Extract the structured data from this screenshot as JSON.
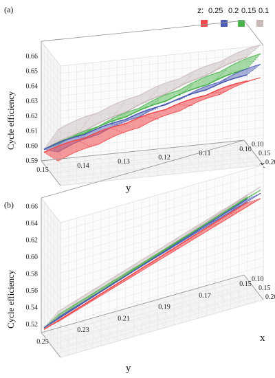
{
  "legend": {
    "title": "z:",
    "items": [
      {
        "label": "0.25",
        "color": "#f04a4e"
      },
      {
        "label": "0.2",
        "color": "#4b5ab2"
      },
      {
        "label": "0.15",
        "color": "#48b34a"
      },
      {
        "label": "0.1",
        "color": "#c9b9b9"
      }
    ]
  },
  "chart_data": [
    {
      "type": "surface3d",
      "panel_label": "(a)",
      "zlabel": "Cycle efficiency",
      "ylabel": "y",
      "xlabel": "x",
      "y_ticks": [
        "0.15",
        "0.14",
        "0.13",
        "0.12",
        "0.11",
        "0.10"
      ],
      "y_range": [
        0.15,
        0.1
      ],
      "x_ticks": [
        "0.10",
        "0.15",
        "0.20"
      ],
      "x_range": [
        0.08,
        0.22
      ],
      "z_ticks": [
        "0.59",
        "0.60",
        "0.61",
        "0.62",
        "0.63",
        "0.64",
        "0.65",
        "0.66"
      ],
      "z_range": [
        0.59,
        0.67
      ],
      "grid": true,
      "series": [
        {
          "name": "0.1",
          "color": "#c9b9b9",
          "z_start": [
            0.6,
            0.625
          ],
          "z_end": [
            0.648,
            0.668
          ]
        },
        {
          "name": "0.15",
          "color": "#48b34a",
          "z_start": [
            0.6,
            0.615
          ],
          "z_end": [
            0.64,
            0.662
          ]
        },
        {
          "name": "0.2",
          "color": "#4b5ab2",
          "z_start": [
            0.6,
            0.61
          ],
          "z_end": [
            0.636,
            0.655
          ]
        },
        {
          "name": "0.25",
          "color": "#f04a4e",
          "z_start": [
            0.598,
            0.604
          ],
          "z_end": [
            0.632,
            0.646
          ]
        }
      ]
    },
    {
      "type": "surface3d",
      "panel_label": "(b)",
      "zlabel": "Cycle efficiency",
      "ylabel": "y",
      "xlabel": "x",
      "y_ticks": [
        "0.25",
        "0.23",
        "0.21",
        "0.19",
        "0.17",
        "0.15"
      ],
      "y_range": [
        0.25,
        0.15
      ],
      "x_ticks": [
        "0.10",
        "0.15",
        "0.20"
      ],
      "x_range": [
        0.08,
        0.22
      ],
      "z_ticks": [
        "0.52",
        "0.54",
        "0.56",
        "0.58",
        "0.60",
        "0.62",
        "0.64",
        "0.66"
      ],
      "z_range": [
        0.51,
        0.67
      ],
      "grid": true,
      "series": [
        {
          "name": "0.1",
          "color": "#c9b9b9",
          "z_start": [
            0.52,
            0.56
          ],
          "z_end": [
            0.608,
            0.64
          ]
        },
        {
          "name": "0.15",
          "color": "#48b34a",
          "z_start": [
            0.52,
            0.556
          ],
          "z_end": [
            0.606,
            0.636
          ]
        },
        {
          "name": "0.2",
          "color": "#4b5ab2",
          "z_start": [
            0.52,
            0.553
          ],
          "z_end": [
            0.604,
            0.632
          ]
        },
        {
          "name": "0.25",
          "color": "#f04a4e",
          "z_start": [
            0.518,
            0.548
          ],
          "z_end": [
            0.6,
            0.626
          ]
        }
      ]
    }
  ]
}
